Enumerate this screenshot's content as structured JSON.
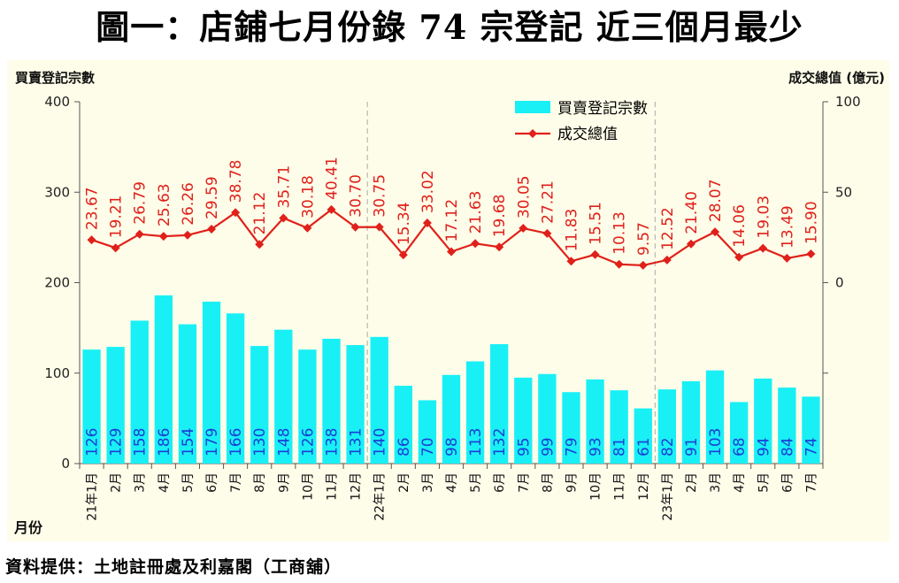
{
  "title": "圖一：店鋪七月份錄 74 宗登記  近三個月最少",
  "source": "資料提供：土地註冊處及利嘉閣（工商舖）",
  "colors": {
    "bar": "#19f0f5",
    "line": "#e0201a",
    "bar_label": "#1b3fd6",
    "panel": "#fefde9"
  },
  "chart_data": {
    "type": "bar",
    "ylabel": "買賣登記宗數",
    "y2label": "成交總值 (億元)",
    "xlabel": "月份",
    "ylim": [
      0,
      400
    ],
    "y2lim": [
      -100,
      100
    ],
    "yticks": [
      0,
      100,
      200,
      300,
      400
    ],
    "y2ticks": [
      0,
      50,
      100
    ],
    "legend": {
      "position": "top-center",
      "entries": [
        "買賣登記宗數",
        "成交總值"
      ]
    },
    "categories": [
      "21年1月",
      "2月",
      "3月",
      "4月",
      "5月",
      "6月",
      "7月",
      "8月",
      "9月",
      "10月",
      "11月",
      "12月",
      "22年1月",
      "2月",
      "3月",
      "4月",
      "5月",
      "6月",
      "7月",
      "8月",
      "9月",
      "10月",
      "11月",
      "12月",
      "23年1月",
      "2月",
      "3月",
      "4月",
      "5月",
      "6月",
      "7月"
    ],
    "series": [
      {
        "name": "買賣登記宗數",
        "type": "bar",
        "axis": "left",
        "values": [
          126,
          129,
          158,
          186,
          154,
          179,
          166,
          130,
          148,
          126,
          138,
          131,
          140,
          86,
          70,
          98,
          113,
          132,
          95,
          99,
          79,
          93,
          81,
          61,
          82,
          91,
          103,
          68,
          94,
          84,
          74
        ],
        "labels": [
          "126",
          "129",
          "158",
          "186",
          "154",
          "179",
          "166",
          "130",
          "148",
          "126",
          "138",
          "131",
          "140",
          "86",
          "70",
          "98",
          "113",
          "132",
          "95",
          "99",
          "79",
          "93",
          "81",
          "61",
          "82",
          "91",
          "103",
          "68",
          "94",
          "84",
          "74"
        ]
      },
      {
        "name": "成交總值",
        "type": "line",
        "axis": "right",
        "values": [
          23.67,
          19.21,
          26.79,
          25.63,
          26.26,
          29.59,
          38.78,
          21.12,
          35.71,
          30.18,
          40.41,
          30.7,
          30.75,
          15.34,
          33.02,
          17.12,
          21.63,
          19.68,
          30.05,
          27.21,
          11.83,
          15.51,
          10.13,
          9.57,
          12.52,
          21.4,
          28.07,
          14.06,
          19.03,
          13.49,
          15.9
        ],
        "labels": [
          "23.67",
          "19.21",
          "26.79",
          "25.63",
          "26.26",
          "29.59",
          "38.78",
          "21.12",
          "35.71",
          "30.18",
          "40.41",
          "30.70",
          "30.75",
          "15.34",
          "33.02",
          "17.12",
          "21.63",
          "19.68",
          "30.05",
          "27.21",
          "11.83",
          "15.51",
          "10.13",
          "9.57",
          "12.52",
          "21.40",
          "28.07",
          "14.06",
          "19.03",
          "13.49",
          "15.90"
        ]
      }
    ],
    "year_dividers_after": [
      "12月",
      "12月"
    ]
  }
}
